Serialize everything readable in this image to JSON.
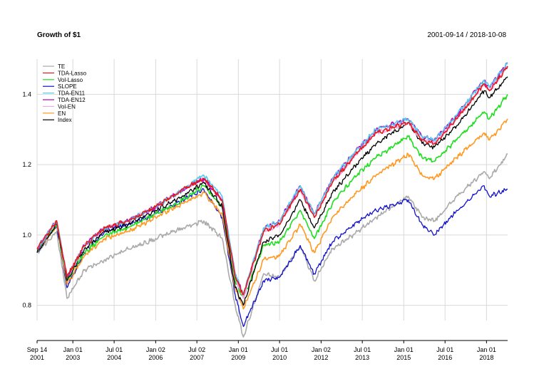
{
  "chart_data": {
    "type": "line",
    "title": "Growth of $1",
    "date_range": "2001-09-14 / 2018-10-08",
    "xlabel": "",
    "ylabel": "",
    "x_start": "2001-09-14",
    "x_end": "2018-10-08",
    "ylim": [
      0.7,
      1.5
    ],
    "y_ticks": [
      {
        "value": 0.8,
        "label": "0.8"
      },
      {
        "value": 1.0,
        "label": "1.0"
      },
      {
        "value": 1.2,
        "label": "1.2"
      },
      {
        "value": 1.4,
        "label": "1.4"
      }
    ],
    "x_ticks": [
      {
        "date": "2001-09-14",
        "line1": "Sep 14",
        "line2": "2001"
      },
      {
        "date": "2003-01-01",
        "line1": "Jan 01",
        "line2": "2003"
      },
      {
        "date": "2004-07-01",
        "line1": "Jul 01",
        "line2": "2004"
      },
      {
        "date": "2006-01-02",
        "line1": "Jan 02",
        "line2": "2006"
      },
      {
        "date": "2007-07-02",
        "line1": "Jul 02",
        "line2": "2007"
      },
      {
        "date": "2009-01-01",
        "line1": "Jan 01",
        "line2": "2009"
      },
      {
        "date": "2010-07-01",
        "line1": "Jul 01",
        "line2": "2010"
      },
      {
        "date": "2012-01-02",
        "line1": "Jan 02",
        "line2": "2012"
      },
      {
        "date": "2013-07-01",
        "line1": "Jul 01",
        "line2": "2013"
      },
      {
        "date": "2015-01-01",
        "line1": "Jan 01",
        "line2": "2015"
      },
      {
        "date": "2016-07-01",
        "line1": "Jul 01",
        "line2": "2016"
      },
      {
        "date": "2018-01-01",
        "line1": "Jan 01",
        "line2": "2018"
      }
    ],
    "grid": true,
    "legend_position": "top-left",
    "legend": [
      {
        "name": "TE",
        "color": "#aaaaaa"
      },
      {
        "name": "TDA-Lasso",
        "color": "#e41a1c"
      },
      {
        "name": "Vol-Lasso",
        "color": "#22dd22"
      },
      {
        "name": "SLOPE",
        "color": "#1010cc"
      },
      {
        "name": "TDA-EN11",
        "color": "#55ccee"
      },
      {
        "name": "TDA-EN12",
        "color": "#bb00bb"
      },
      {
        "name": "Vol-EN",
        "color": "#f0aaf0"
      },
      {
        "name": "EN",
        "color": "#ff9922"
      },
      {
        "name": "Index",
        "color": "#000000"
      }
    ],
    "series": [
      {
        "name": "TE",
        "color": "#aaaaaa",
        "x": [
          "2001-09-14",
          "2002-06-01",
          "2002-10-15",
          "2003-06-01",
          "2004-03-01",
          "2005-01-01",
          "2006-01-01",
          "2007-01-01",
          "2007-10-01",
          "2008-06-01",
          "2008-11-20",
          "2009-03-09",
          "2009-12-01",
          "2010-07-01",
          "2011-04-01",
          "2011-10-04",
          "2012-06-01",
          "2013-03-01",
          "2014-01-01",
          "2015-03-01",
          "2015-09-01",
          "2016-02-11",
          "2016-12-01",
          "2017-12-01",
          "2018-02-09",
          "2018-10-08"
        ],
        "values": [
          0.95,
          1.01,
          0.82,
          0.9,
          0.93,
          0.96,
          0.99,
          1.02,
          1.04,
          0.99,
          0.8,
          0.71,
          0.89,
          0.88,
          0.97,
          0.87,
          0.96,
          1.0,
          1.05,
          1.11,
          1.05,
          1.04,
          1.11,
          1.18,
          1.16,
          1.23
        ]
      },
      {
        "name": "SLOPE",
        "color": "#1010cc",
        "x": [
          "2001-09-14",
          "2002-06-01",
          "2002-10-15",
          "2003-06-01",
          "2004-03-01",
          "2005-01-01",
          "2006-01-01",
          "2007-01-01",
          "2007-10-01",
          "2008-06-01",
          "2008-11-20",
          "2009-03-09",
          "2009-12-01",
          "2010-07-01",
          "2011-04-01",
          "2011-10-04",
          "2012-06-01",
          "2013-03-01",
          "2014-01-01",
          "2015-03-01",
          "2015-09-01",
          "2016-02-11",
          "2016-12-01",
          "2017-12-01",
          "2018-02-09",
          "2018-10-08"
        ],
        "values": [
          0.95,
          1.03,
          0.85,
          0.95,
          1.01,
          1.03,
          1.06,
          1.1,
          1.13,
          1.05,
          0.83,
          0.74,
          0.87,
          0.88,
          0.97,
          0.89,
          0.98,
          1.03,
          1.07,
          1.1,
          1.03,
          1.0,
          1.07,
          1.14,
          1.11,
          1.13
        ]
      },
      {
        "name": "EN",
        "color": "#ff9922",
        "x": [
          "2001-09-14",
          "2002-06-01",
          "2002-10-15",
          "2003-06-01",
          "2004-03-01",
          "2005-01-01",
          "2006-01-01",
          "2007-01-01",
          "2007-10-01",
          "2008-06-01",
          "2008-11-20",
          "2009-03-09",
          "2009-12-01",
          "2010-07-01",
          "2011-04-01",
          "2011-10-04",
          "2012-06-01",
          "2013-03-01",
          "2014-01-01",
          "2015-03-01",
          "2015-09-01",
          "2016-02-11",
          "2016-12-01",
          "2017-12-01",
          "2018-02-09",
          "2018-10-08"
        ],
        "values": [
          0.95,
          1.03,
          0.86,
          0.94,
          0.99,
          1.01,
          1.05,
          1.09,
          1.12,
          1.06,
          0.85,
          0.79,
          0.93,
          0.94,
          1.03,
          0.95,
          1.05,
          1.11,
          1.17,
          1.23,
          1.17,
          1.16,
          1.22,
          1.29,
          1.27,
          1.33
        ]
      },
      {
        "name": "Vol-Lasso",
        "color": "#22dd22",
        "x": [
          "2001-09-14",
          "2002-06-01",
          "2002-10-15",
          "2003-06-01",
          "2004-03-01",
          "2005-01-01",
          "2006-01-01",
          "2007-01-01",
          "2007-10-01",
          "2008-06-01",
          "2008-11-20",
          "2009-03-09",
          "2009-12-01",
          "2010-07-01",
          "2011-04-01",
          "2011-10-04",
          "2012-06-01",
          "2013-03-01",
          "2014-01-01",
          "2015-03-01",
          "2015-09-01",
          "2016-02-11",
          "2016-12-01",
          "2017-12-01",
          "2018-02-09",
          "2018-10-08"
        ],
        "values": [
          0.95,
          1.03,
          0.87,
          0.95,
          1.0,
          1.02,
          1.06,
          1.1,
          1.14,
          1.08,
          0.87,
          0.82,
          0.97,
          0.98,
          1.07,
          0.99,
          1.09,
          1.16,
          1.22,
          1.28,
          1.22,
          1.21,
          1.27,
          1.35,
          1.33,
          1.4
        ]
      },
      {
        "name": "Index",
        "color": "#000000",
        "x": [
          "2001-09-14",
          "2002-06-01",
          "2002-10-15",
          "2003-06-01",
          "2004-03-01",
          "2005-01-01",
          "2006-01-01",
          "2007-01-01",
          "2007-10-01",
          "2008-06-01",
          "2008-11-20",
          "2009-03-09",
          "2009-12-01",
          "2010-07-01",
          "2011-04-01",
          "2011-10-04",
          "2012-06-01",
          "2013-03-01",
          "2014-01-01",
          "2015-03-01",
          "2015-09-01",
          "2016-02-11",
          "2016-12-01",
          "2017-12-01",
          "2018-02-09",
          "2018-10-08"
        ],
        "values": [
          0.95,
          1.03,
          0.87,
          0.96,
          1.01,
          1.03,
          1.07,
          1.11,
          1.15,
          1.08,
          0.85,
          0.8,
          0.98,
          1.0,
          1.1,
          1.02,
          1.12,
          1.19,
          1.26,
          1.32,
          1.26,
          1.25,
          1.31,
          1.41,
          1.39,
          1.45
        ]
      },
      {
        "name": "Vol-EN",
        "color": "#f0aaf0",
        "x": [
          "2001-09-14",
          "2002-06-01",
          "2002-10-15",
          "2003-06-01",
          "2004-03-01",
          "2005-01-01",
          "2006-01-01",
          "2007-01-01",
          "2007-10-01",
          "2008-06-01",
          "2008-11-20",
          "2009-03-09",
          "2009-12-01",
          "2010-07-01",
          "2011-04-01",
          "2011-10-04",
          "2012-06-01",
          "2013-03-01",
          "2014-01-01",
          "2015-03-01",
          "2015-09-01",
          "2016-02-11",
          "2016-12-01",
          "2017-12-01",
          "2018-02-09",
          "2018-10-08"
        ],
        "values": [
          0.96,
          1.04,
          0.88,
          0.97,
          1.02,
          1.04,
          1.08,
          1.13,
          1.16,
          1.1,
          0.88,
          0.82,
          1.01,
          1.03,
          1.13,
          1.05,
          1.15,
          1.22,
          1.29,
          1.32,
          1.27,
          1.26,
          1.33,
          1.43,
          1.41,
          1.48
        ]
      },
      {
        "name": "TDA-EN12",
        "color": "#bb00bb",
        "x": [
          "2001-09-14",
          "2002-06-01",
          "2002-10-15",
          "2003-06-01",
          "2004-03-01",
          "2005-01-01",
          "2006-01-01",
          "2007-01-01",
          "2007-10-01",
          "2008-06-01",
          "2008-11-20",
          "2009-03-09",
          "2009-12-01",
          "2010-07-01",
          "2011-04-01",
          "2011-10-04",
          "2012-06-01",
          "2013-03-01",
          "2014-01-01",
          "2015-03-01",
          "2015-09-01",
          "2016-02-11",
          "2016-12-01",
          "2017-12-01",
          "2018-02-09",
          "2018-10-08"
        ],
        "values": [
          0.96,
          1.04,
          0.88,
          0.97,
          1.02,
          1.04,
          1.08,
          1.13,
          1.16,
          1.1,
          0.89,
          0.83,
          1.02,
          1.04,
          1.14,
          1.06,
          1.16,
          1.23,
          1.3,
          1.33,
          1.28,
          1.27,
          1.34,
          1.44,
          1.42,
          1.49
        ]
      },
      {
        "name": "TDA-EN11",
        "color": "#55ccee",
        "x": [
          "2001-09-14",
          "2002-06-01",
          "2002-10-15",
          "2003-06-01",
          "2004-03-01",
          "2005-01-01",
          "2006-01-01",
          "2007-01-01",
          "2007-10-01",
          "2008-06-01",
          "2008-11-20",
          "2009-03-09",
          "2009-12-01",
          "2010-07-01",
          "2011-04-01",
          "2011-10-04",
          "2012-06-01",
          "2013-03-01",
          "2014-01-01",
          "2015-03-01",
          "2015-09-01",
          "2016-02-11",
          "2016-12-01",
          "2017-12-01",
          "2018-02-09",
          "2018-10-08"
        ],
        "values": [
          0.96,
          1.04,
          0.88,
          0.97,
          1.02,
          1.04,
          1.08,
          1.13,
          1.17,
          1.11,
          0.89,
          0.83,
          1.02,
          1.04,
          1.14,
          1.06,
          1.16,
          1.23,
          1.3,
          1.33,
          1.28,
          1.27,
          1.34,
          1.44,
          1.42,
          1.49
        ]
      },
      {
        "name": "TDA-Lasso",
        "color": "#e41a1c",
        "x": [
          "2001-09-14",
          "2002-06-01",
          "2002-10-15",
          "2003-06-01",
          "2004-03-01",
          "2005-01-01",
          "2006-01-01",
          "2007-01-01",
          "2007-10-01",
          "2008-06-01",
          "2008-11-20",
          "2009-03-09",
          "2009-12-01",
          "2010-07-01",
          "2011-04-01",
          "2011-10-04",
          "2012-06-01",
          "2013-03-01",
          "2014-01-01",
          "2015-03-01",
          "2015-09-01",
          "2016-02-11",
          "2016-12-01",
          "2017-12-01",
          "2018-02-09",
          "2018-10-08"
        ],
        "values": [
          0.96,
          1.04,
          0.88,
          0.97,
          1.02,
          1.04,
          1.08,
          1.13,
          1.16,
          1.1,
          0.88,
          0.83,
          1.01,
          1.03,
          1.13,
          1.05,
          1.15,
          1.22,
          1.29,
          1.32,
          1.27,
          1.26,
          1.33,
          1.43,
          1.41,
          1.48
        ]
      }
    ]
  }
}
